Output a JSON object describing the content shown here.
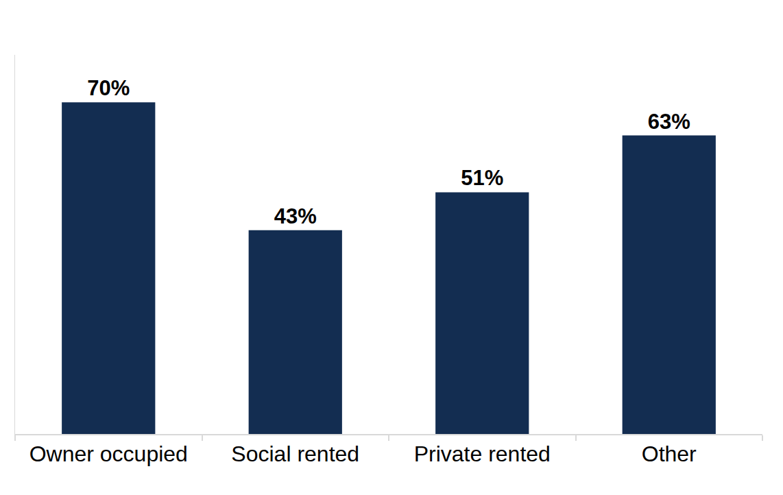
{
  "chart_data": {
    "type": "bar",
    "categories": [
      "Owner occupied",
      "Social rented",
      "Private rented",
      "Other"
    ],
    "values": [
      70,
      43,
      51,
      63
    ],
    "value_labels": [
      "70%",
      "43%",
      "51%",
      "63%"
    ],
    "color": "#132d51",
    "ylim": [
      0,
      80
    ],
    "data_labels": true,
    "tick_labels": "x",
    "grid": false
  }
}
